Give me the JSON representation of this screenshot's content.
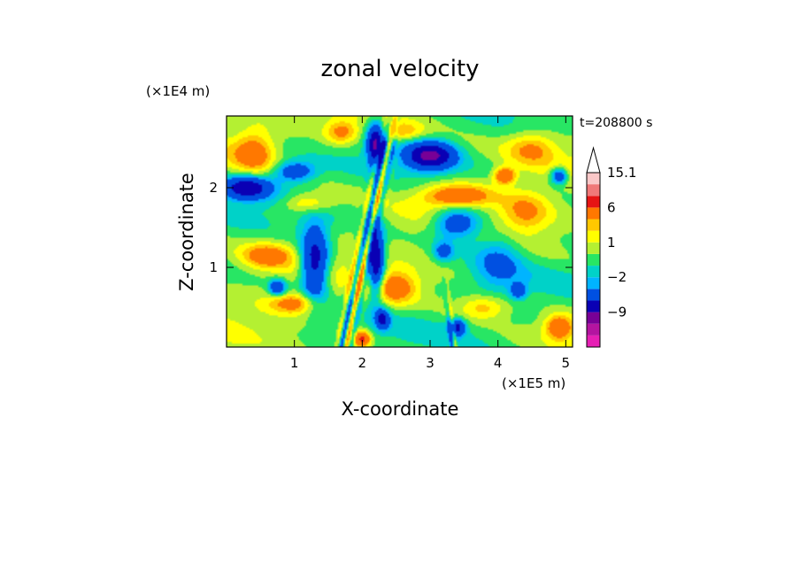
{
  "chart_data": {
    "type": "heatmap",
    "title": "zonal velocity",
    "xlabel": "X-coordinate",
    "ylabel": "Z-coordinate",
    "x_unit": "(×1E5 m)",
    "y_unit": "(×1E4 m)",
    "time_label": "t=208800 s",
    "xlim": [
      0.0,
      5.1
    ],
    "ylim": [
      0.0,
      2.9
    ],
    "x_ticks": [
      {
        "value": 1,
        "label": "1"
      },
      {
        "value": 2,
        "label": "2"
      },
      {
        "value": 3,
        "label": "3"
      },
      {
        "value": 4,
        "label": "4"
      },
      {
        "value": 5,
        "label": "5"
      }
    ],
    "y_ticks": [
      {
        "value": 1,
        "label": "1"
      },
      {
        "value": 2,
        "label": "2"
      }
    ],
    "colorbar": {
      "levels": [
        -15,
        -12,
        -9,
        -6,
        -3,
        -2,
        -1,
        0,
        1,
        2,
        3,
        6,
        9,
        12,
        15.1
      ],
      "colors": [
        "#e61fb4",
        "#b414a0",
        "#780096",
        "#0a00b4",
        "#0050e1",
        "#00b4ff",
        "#00d2c8",
        "#28e664",
        "#b4f032",
        "#ffff00",
        "#ffc800",
        "#ff7800",
        "#e61414",
        "#f07878",
        "#fac8c8"
      ],
      "labels": [
        {
          "value": 15.1,
          "label": "15.1"
        },
        {
          "value": 6,
          "label": "6"
        },
        {
          "value": 1,
          "label": "1"
        },
        {
          "value": -2,
          "label": "−2"
        },
        {
          "value": -9,
          "label": "−9"
        }
      ],
      "extend_top": true
    },
    "features": [
      {
        "x": 0.3,
        "z": 2.0,
        "u": -8,
        "sx": 0.35,
        "sz": 0.14
      },
      {
        "x": 1.3,
        "z": 1.05,
        "u": -8,
        "sx": 0.2,
        "sz": 0.45
      },
      {
        "x": 2.2,
        "z": 1.1,
        "u": -9,
        "sx": 0.12,
        "sz": 0.45
      },
      {
        "x": 2.2,
        "z": 2.55,
        "u": -9,
        "sx": 0.12,
        "sz": 0.25
      },
      {
        "x": 3.0,
        "z": 2.4,
        "u": -9,
        "sx": 0.35,
        "sz": 0.17
      },
      {
        "x": 3.4,
        "z": 1.55,
        "u": -6,
        "sx": 0.35,
        "sz": 0.2
      },
      {
        "x": 1.0,
        "z": 2.2,
        "u": -5,
        "sx": 0.3,
        "sz": 0.13
      },
      {
        "x": 0.75,
        "z": 0.75,
        "u": -6,
        "sx": 0.12,
        "sz": 0.1
      },
      {
        "x": 3.2,
        "z": 1.2,
        "u": -4,
        "sx": 0.15,
        "sz": 0.12
      },
      {
        "x": 4.0,
        "z": 1.1,
        "u": -3,
        "sx": 0.35,
        "sz": 0.4
      },
      {
        "x": 4.3,
        "z": 0.7,
        "u": -4,
        "sx": 0.12,
        "sz": 0.1
      },
      {
        "x": 2.3,
        "z": 0.35,
        "u": -6,
        "sx": 0.1,
        "sz": 0.12
      },
      {
        "x": 3.4,
        "z": 0.25,
        "u": -6,
        "sx": 0.12,
        "sz": 0.1
      },
      {
        "x": 4.9,
        "z": 2.15,
        "u": -6,
        "sx": 0.12,
        "sz": 0.1
      },
      {
        "x": 1.2,
        "z": 1.8,
        "u": 3,
        "sx": 0.35,
        "sz": 0.12
      },
      {
        "x": 0.4,
        "z": 2.45,
        "u": 4,
        "sx": 0.3,
        "sz": 0.25
      },
      {
        "x": 2.5,
        "z": 0.75,
        "u": 4,
        "sx": 0.3,
        "sz": 0.2
      },
      {
        "x": 3.4,
        "z": 1.9,
        "u": 5,
        "sx": 0.5,
        "sz": 0.14
      },
      {
        "x": 1.0,
        "z": 0.55,
        "u": 4,
        "sx": 0.35,
        "sz": 0.12
      },
      {
        "x": 2.6,
        "z": 2.7,
        "u": 3,
        "sx": 0.3,
        "sz": 0.12
      },
      {
        "x": 4.5,
        "z": 2.5,
        "u": 3,
        "sx": 0.35,
        "sz": 0.2
      },
      {
        "x": 0.6,
        "z": 1.15,
        "u": 4,
        "sx": 0.35,
        "sz": 0.15
      },
      {
        "x": 4.4,
        "z": 1.7,
        "u": 3,
        "sx": 0.35,
        "sz": 0.25
      },
      {
        "x": 4.9,
        "z": 0.25,
        "u": 5,
        "sx": 0.2,
        "sz": 0.15
      },
      {
        "x": 3.8,
        "z": 0.5,
        "u": 3,
        "sx": 0.35,
        "sz": 0.15
      },
      {
        "x": 1.7,
        "z": 2.7,
        "u": 4,
        "sx": 0.25,
        "sz": 0.15
      },
      {
        "x": 2.0,
        "z": 0.1,
        "u": 7,
        "sx": 0.12,
        "sz": 0.1
      },
      {
        "x": 4.1,
        "z": 2.15,
        "u": 6,
        "sx": 0.15,
        "sz": 0.1
      }
    ]
  }
}
